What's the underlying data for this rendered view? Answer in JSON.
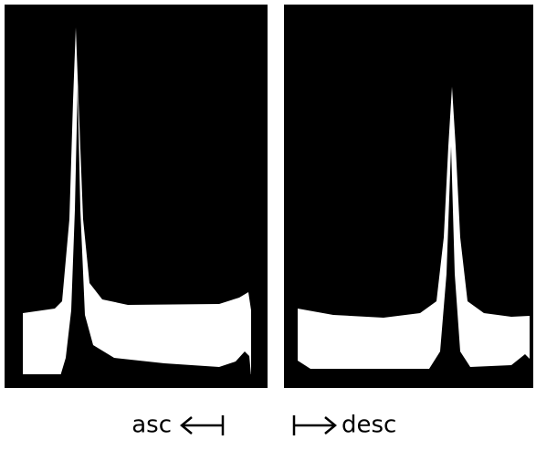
{
  "labels": {
    "left": "asc",
    "right": "desc"
  }
}
